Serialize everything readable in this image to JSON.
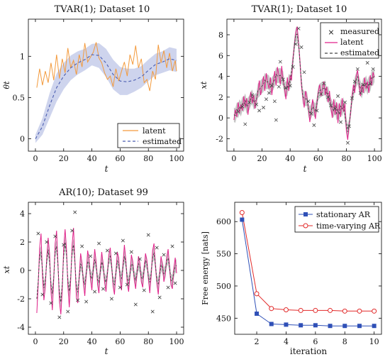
{
  "colors": {
    "orange": "#f39a3c",
    "blue": "#4a5db0",
    "band": "#c6cdea",
    "pink": "#e0218a",
    "grey": "#444444",
    "greyband": "#bdbdbd",
    "red": "#e22a2a",
    "navy": "#2f50b7",
    "axis": "#000000"
  },
  "chart_data": [
    {
      "title": "TVAR(1); Dataset 10",
      "type": "line",
      "xlabel": "t",
      "ylabel": "θt",
      "xlim": [
        -5,
        105
      ],
      "ylim": [
        -0.15,
        1.45
      ],
      "xticks": [
        0,
        20,
        40,
        60,
        80,
        100
      ],
      "yticks": [
        0,
        0.5,
        1
      ],
      "ytick_labels": [
        "0",
        "0.5",
        "1"
      ],
      "legend": {
        "position": "bottom-right",
        "entries": [
          "latent",
          "estimated"
        ]
      },
      "series": [
        {
          "name": "latent",
          "style": "line",
          "color": "orange",
          "x": [
            1,
            3,
            5,
            7,
            9,
            11,
            13,
            15,
            17,
            19,
            21,
            23,
            25,
            27,
            29,
            31,
            33,
            35,
            37,
            39,
            41,
            43,
            45,
            47,
            49,
            51,
            53,
            55,
            57,
            59,
            61,
            63,
            65,
            67,
            69,
            71,
            73,
            75,
            77,
            79,
            81,
            83,
            85,
            87,
            89,
            91,
            93,
            95,
            97,
            99,
            100
          ],
          "y": [
            0.62,
            0.85,
            0.65,
            0.82,
            0.68,
            0.92,
            0.71,
            1.02,
            0.73,
            0.97,
            0.8,
            1.1,
            0.86,
            0.95,
            0.78,
            1.02,
            0.87,
            1.16,
            0.93,
            0.99,
            1.05,
            1.17,
            0.98,
            0.92,
            0.8,
            0.72,
            0.76,
            0.63,
            0.85,
            0.7,
            0.82,
            0.93,
            0.76,
            1.02,
            0.9,
            1.13,
            0.86,
            0.97,
            0.68,
            0.72,
            0.58,
            0.82,
            0.72,
            1.14,
            0.92,
            1.07,
            0.86,
            1.04,
            0.82,
            0.95,
            0.82
          ]
        },
        {
          "name": "estimated",
          "style": "dashed",
          "color": "blue",
          "x": [
            0,
            5,
            10,
            15,
            20,
            25,
            30,
            35,
            40,
            45,
            50,
            55,
            60,
            65,
            70,
            75,
            80,
            85,
            90,
            95,
            100
          ],
          "y": [
            0.0,
            0.15,
            0.4,
            0.62,
            0.76,
            0.86,
            0.92,
            0.96,
            1.02,
            1.01,
            0.92,
            0.78,
            0.7,
            0.69,
            0.71,
            0.75,
            0.83,
            0.9,
            0.93,
            0.97,
            0.95
          ],
          "band_half_width": [
            0.05,
            0.1,
            0.15,
            0.17,
            0.16,
            0.15,
            0.14,
            0.13,
            0.13,
            0.15,
            0.17,
            0.18,
            0.17,
            0.16,
            0.14,
            0.13,
            0.13,
            0.13,
            0.13,
            0.14,
            0.14
          ]
        }
      ]
    },
    {
      "title": "TVAR(1); Dataset 10",
      "type": "line",
      "xlabel": "t",
      "ylabel": "xt",
      "xlim": [
        -5,
        105
      ],
      "ylim": [
        -3.2,
        9.5
      ],
      "xticks": [
        0,
        20,
        40,
        60,
        80,
        100
      ],
      "yticks": [
        -2,
        0,
        2,
        4,
        6,
        8
      ],
      "legend": {
        "position": "top-right",
        "entries": [
          "measured",
          "latent",
          "estimated"
        ]
      },
      "latent_x_start": 0,
      "latent_y": [
        -0.2,
        0.8,
        0.1,
        1.5,
        0.5,
        1.3,
        0.7,
        2.1,
        1.0,
        1.9,
        0.3,
        1.6,
        2.5,
        1.4,
        2.2,
        0.9,
        1.8,
        2.4,
        3.6,
        2.2,
        3.0,
        4.0,
        2.6,
        4.3,
        3.4,
        2.8,
        3.9,
        2.2,
        3.5,
        4.5,
        3.1,
        4.9,
        4.1,
        3.2,
        5.0,
        3.6,
        2.8,
        1.8,
        3.9,
        2.6,
        4.1,
        3.6,
        5.7,
        7.0,
        8.2,
        8.8,
        7.2,
        5.4,
        3.2,
        2.0,
        1.0,
        2.6,
        1.9,
        1.0,
        -0.4,
        0.6,
        1.8,
        0.8,
        -0.1,
        1.4,
        2.5,
        3.2,
        2.1,
        2.8,
        3.5,
        2.2,
        3.0,
        1.5,
        2.6,
        1.0,
        0.0,
        1.8,
        0.3,
        1.5,
        -0.5,
        1.4,
        0.1,
        1.9,
        0.6,
        1.4,
        -1.3,
        -2.1,
        -0.6,
        0.4,
        2.0,
        3.2,
        2.4,
        4.0,
        4.6,
        3.3,
        2.1,
        3.2,
        2.4,
        3.9,
        2.8,
        3.5,
        2.4,
        4.1,
        3.1,
        4.4,
        3.9
      ],
      "measured": [
        {
          "t": 3,
          "v": 0.6
        },
        {
          "t": 6,
          "v": 1.1
        },
        {
          "t": 8,
          "v": -0.6
        },
        {
          "t": 11,
          "v": 1.5
        },
        {
          "t": 13,
          "v": 2.2
        },
        {
          "t": 16,
          "v": 1.3
        },
        {
          "t": 18,
          "v": 0.7
        },
        {
          "t": 21,
          "v": 1.0
        },
        {
          "t": 23,
          "v": 1.8
        },
        {
          "t": 25,
          "v": 2.4
        },
        {
          "t": 27,
          "v": 3.1
        },
        {
          "t": 29,
          "v": 1.6
        },
        {
          "t": 30,
          "v": -0.2
        },
        {
          "t": 32,
          "v": 3.0
        },
        {
          "t": 33,
          "v": 5.4
        },
        {
          "t": 35,
          "v": 3.7
        },
        {
          "t": 37,
          "v": 2.9
        },
        {
          "t": 40,
          "v": 3.1
        },
        {
          "t": 42,
          "v": 4.9
        },
        {
          "t": 44,
          "v": 7.1
        },
        {
          "t": 46,
          "v": 8.6
        },
        {
          "t": 48,
          "v": 6.8
        },
        {
          "t": 50,
          "v": 4.4
        },
        {
          "t": 53,
          "v": 1.6
        },
        {
          "t": 55,
          "v": 0.4
        },
        {
          "t": 57,
          "v": -0.7
        },
        {
          "t": 59,
          "v": 0.7
        },
        {
          "t": 62,
          "v": 2.3
        },
        {
          "t": 64,
          "v": 3.3
        },
        {
          "t": 67,
          "v": 2.0
        },
        {
          "t": 69,
          "v": 1.2
        },
        {
          "t": 72,
          "v": 0.9
        },
        {
          "t": 74,
          "v": 2.1
        },
        {
          "t": 76,
          "v": -0.4
        },
        {
          "t": 79,
          "v": 1.5
        },
        {
          "t": 81,
          "v": -2.4
        },
        {
          "t": 82,
          "v": -0.8
        },
        {
          "t": 84,
          "v": 1.9
        },
        {
          "t": 86,
          "v": 3.5
        },
        {
          "t": 88,
          "v": 4.7
        },
        {
          "t": 90,
          "v": 2.4
        },
        {
          "t": 92,
          "v": 3.2
        },
        {
          "t": 95,
          "v": 5.3
        },
        {
          "t": 97,
          "v": 3.3
        },
        {
          "t": 99,
          "v": 4.7
        }
      ]
    },
    {
      "title": "AR(10); Dataset 99",
      "type": "line",
      "xlabel": "t",
      "ylabel": "xt",
      "xlim": [
        -5,
        105
      ],
      "ylim": [
        -4.5,
        4.8
      ],
      "xticks": [
        0,
        20,
        40,
        60,
        80,
        100
      ],
      "yticks": [
        -4,
        -2,
        0,
        2,
        4
      ],
      "latent_x_start": 1,
      "latent_y": [
        -3.0,
        -1.0,
        1.6,
        2.6,
        -0.4,
        -2.1,
        -1.2,
        0.9,
        2.3,
        1.2,
        -1.5,
        -2.8,
        -0.6,
        1.9,
        2.8,
        0.4,
        -2.2,
        -3.1,
        -1.4,
        1.6,
        2.9,
        1.5,
        -1.1,
        -2.6,
        -0.7,
        1.8,
        3.0,
        0.6,
        -1.9,
        -2.3,
        -0.4,
        1.2,
        0.5,
        -0.9,
        -1.8,
        -0.3,
        1.4,
        0.8,
        -0.6,
        -1.4,
        0.2,
        1.5,
        0.6,
        -1.0,
        -1.6,
        0.1,
        1.3,
        0.4,
        -0.8,
        -1.5,
        -0.2,
        1.1,
        1.6,
        0.3,
        -1.1,
        -1.7,
        -0.2,
        1.3,
        0.9,
        -0.7,
        -1.4,
        0.4,
        1.8,
        0.8,
        -0.9,
        -1.5,
        -0.3,
        1.1,
        0.6,
        -0.6,
        -1.3,
        -0.1,
        1.0,
        0.5,
        -0.8,
        -1.2,
        0.2,
        1.2,
        0.7,
        -0.5,
        -1.6,
        -0.4,
        1.4,
        1.9,
        0.3,
        -0.9,
        -1.7,
        -0.2,
        1.0,
        0.4,
        -0.8,
        -0.3,
        0.9,
        1.5,
        0.2,
        -1.0,
        -1.3,
        0.1,
        0.9,
        -0.2
      ],
      "measured": [
        {
          "t": 2,
          "v": 2.6
        },
        {
          "t": 5,
          "v": -1.7
        },
        {
          "t": 8,
          "v": 2.0
        },
        {
          "t": 11,
          "v": -2.3
        },
        {
          "t": 14,
          "v": 2.4
        },
        {
          "t": 17,
          "v": -3.3
        },
        {
          "t": 20,
          "v": 1.8
        },
        {
          "t": 23,
          "v": -2.9
        },
        {
          "t": 26,
          "v": 2.8
        },
        {
          "t": 28,
          "v": 4.1
        },
        {
          "t": 30,
          "v": -2.1
        },
        {
          "t": 33,
          "v": 1.7
        },
        {
          "t": 36,
          "v": -2.2
        },
        {
          "t": 39,
          "v": 1.0
        },
        {
          "t": 42,
          "v": -1.5
        },
        {
          "t": 45,
          "v": 1.9
        },
        {
          "t": 48,
          "v": -1.3
        },
        {
          "t": 51,
          "v": 1.4
        },
        {
          "t": 54,
          "v": -2.0
        },
        {
          "t": 57,
          "v": 1.2
        },
        {
          "t": 60,
          "v": -1.2
        },
        {
          "t": 62,
          "v": 2.1
        },
        {
          "t": 65,
          "v": -1.0
        },
        {
          "t": 68,
          "v": 1.3
        },
        {
          "t": 71,
          "v": -2.4
        },
        {
          "t": 74,
          "v": 0.8
        },
        {
          "t": 77,
          "v": -1.4
        },
        {
          "t": 80,
          "v": 2.5
        },
        {
          "t": 83,
          "v": -2.9
        },
        {
          "t": 86,
          "v": 1.6
        },
        {
          "t": 88,
          "v": -1.9
        },
        {
          "t": 91,
          "v": 1.1
        },
        {
          "t": 94,
          "v": -1.2
        },
        {
          "t": 97,
          "v": 1.7
        },
        {
          "t": 99,
          "v": -0.9
        }
      ]
    },
    {
      "type": "line",
      "xlabel": "iteration",
      "ylabel": "Free energy [nats]",
      "xlim": [
        0.5,
        10.5
      ],
      "ylim": [
        425,
        630
      ],
      "xticks": [
        2,
        4,
        6,
        8,
        10
      ],
      "yticks": [
        450,
        500,
        550,
        600
      ],
      "legend": {
        "position": "top-right",
        "entries": [
          "stationary AR",
          "time-varying AR"
        ]
      },
      "series": [
        {
          "name": "stationary AR",
          "marker": "square",
          "color": "navy",
          "x": [
            1,
            2,
            3,
            4,
            5,
            6,
            7,
            8,
            9,
            10
          ],
          "y": [
            603,
            457,
            441,
            440,
            439,
            439,
            438,
            438,
            438,
            438
          ]
        },
        {
          "name": "time-varying AR",
          "marker": "circle",
          "color": "red",
          "x": [
            1,
            2,
            3,
            4,
            5,
            6,
            7,
            8,
            9,
            10
          ],
          "y": [
            614,
            488,
            465,
            463,
            462,
            462,
            462,
            461,
            461,
            461
          ]
        }
      ]
    }
  ]
}
